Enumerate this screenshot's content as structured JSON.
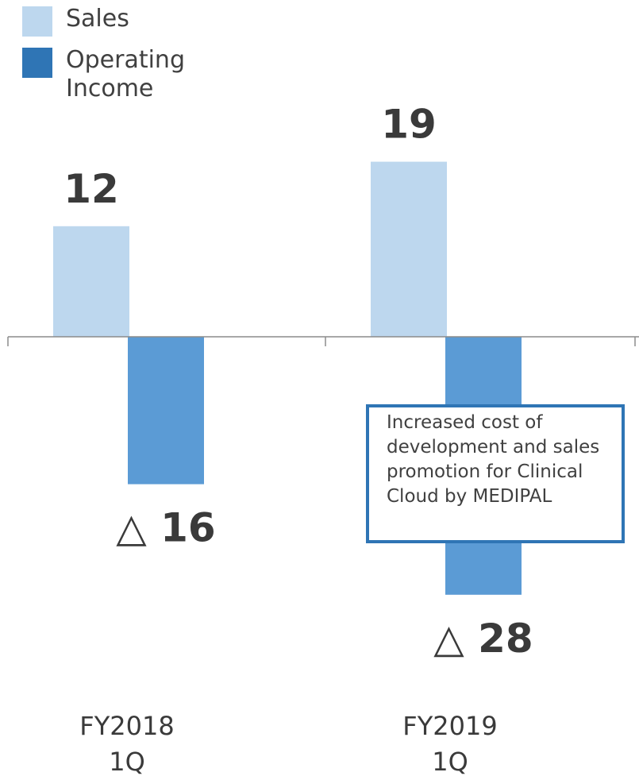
{
  "chart_data": {
    "type": "bar",
    "categories": [
      "FY2018\n1Q",
      "FY2019\n1Q"
    ],
    "series": [
      {
        "name": "Sales",
        "values": [
          12,
          19
        ],
        "color": "#bdd7ee"
      },
      {
        "name": "Operating Income",
        "values": [
          -16,
          -28
        ],
        "color": "#5b9bd5"
      }
    ],
    "value_labels": [
      [
        "12",
        "19"
      ],
      [
        "△ 16",
        "△ 28"
      ]
    ],
    "legend_position": "top-left",
    "grid": false,
    "annotation": "Increased cost of development and sales promotion for Clinical Cloud by MEDIPAL",
    "annotation_border_color": "#2f75b5"
  }
}
